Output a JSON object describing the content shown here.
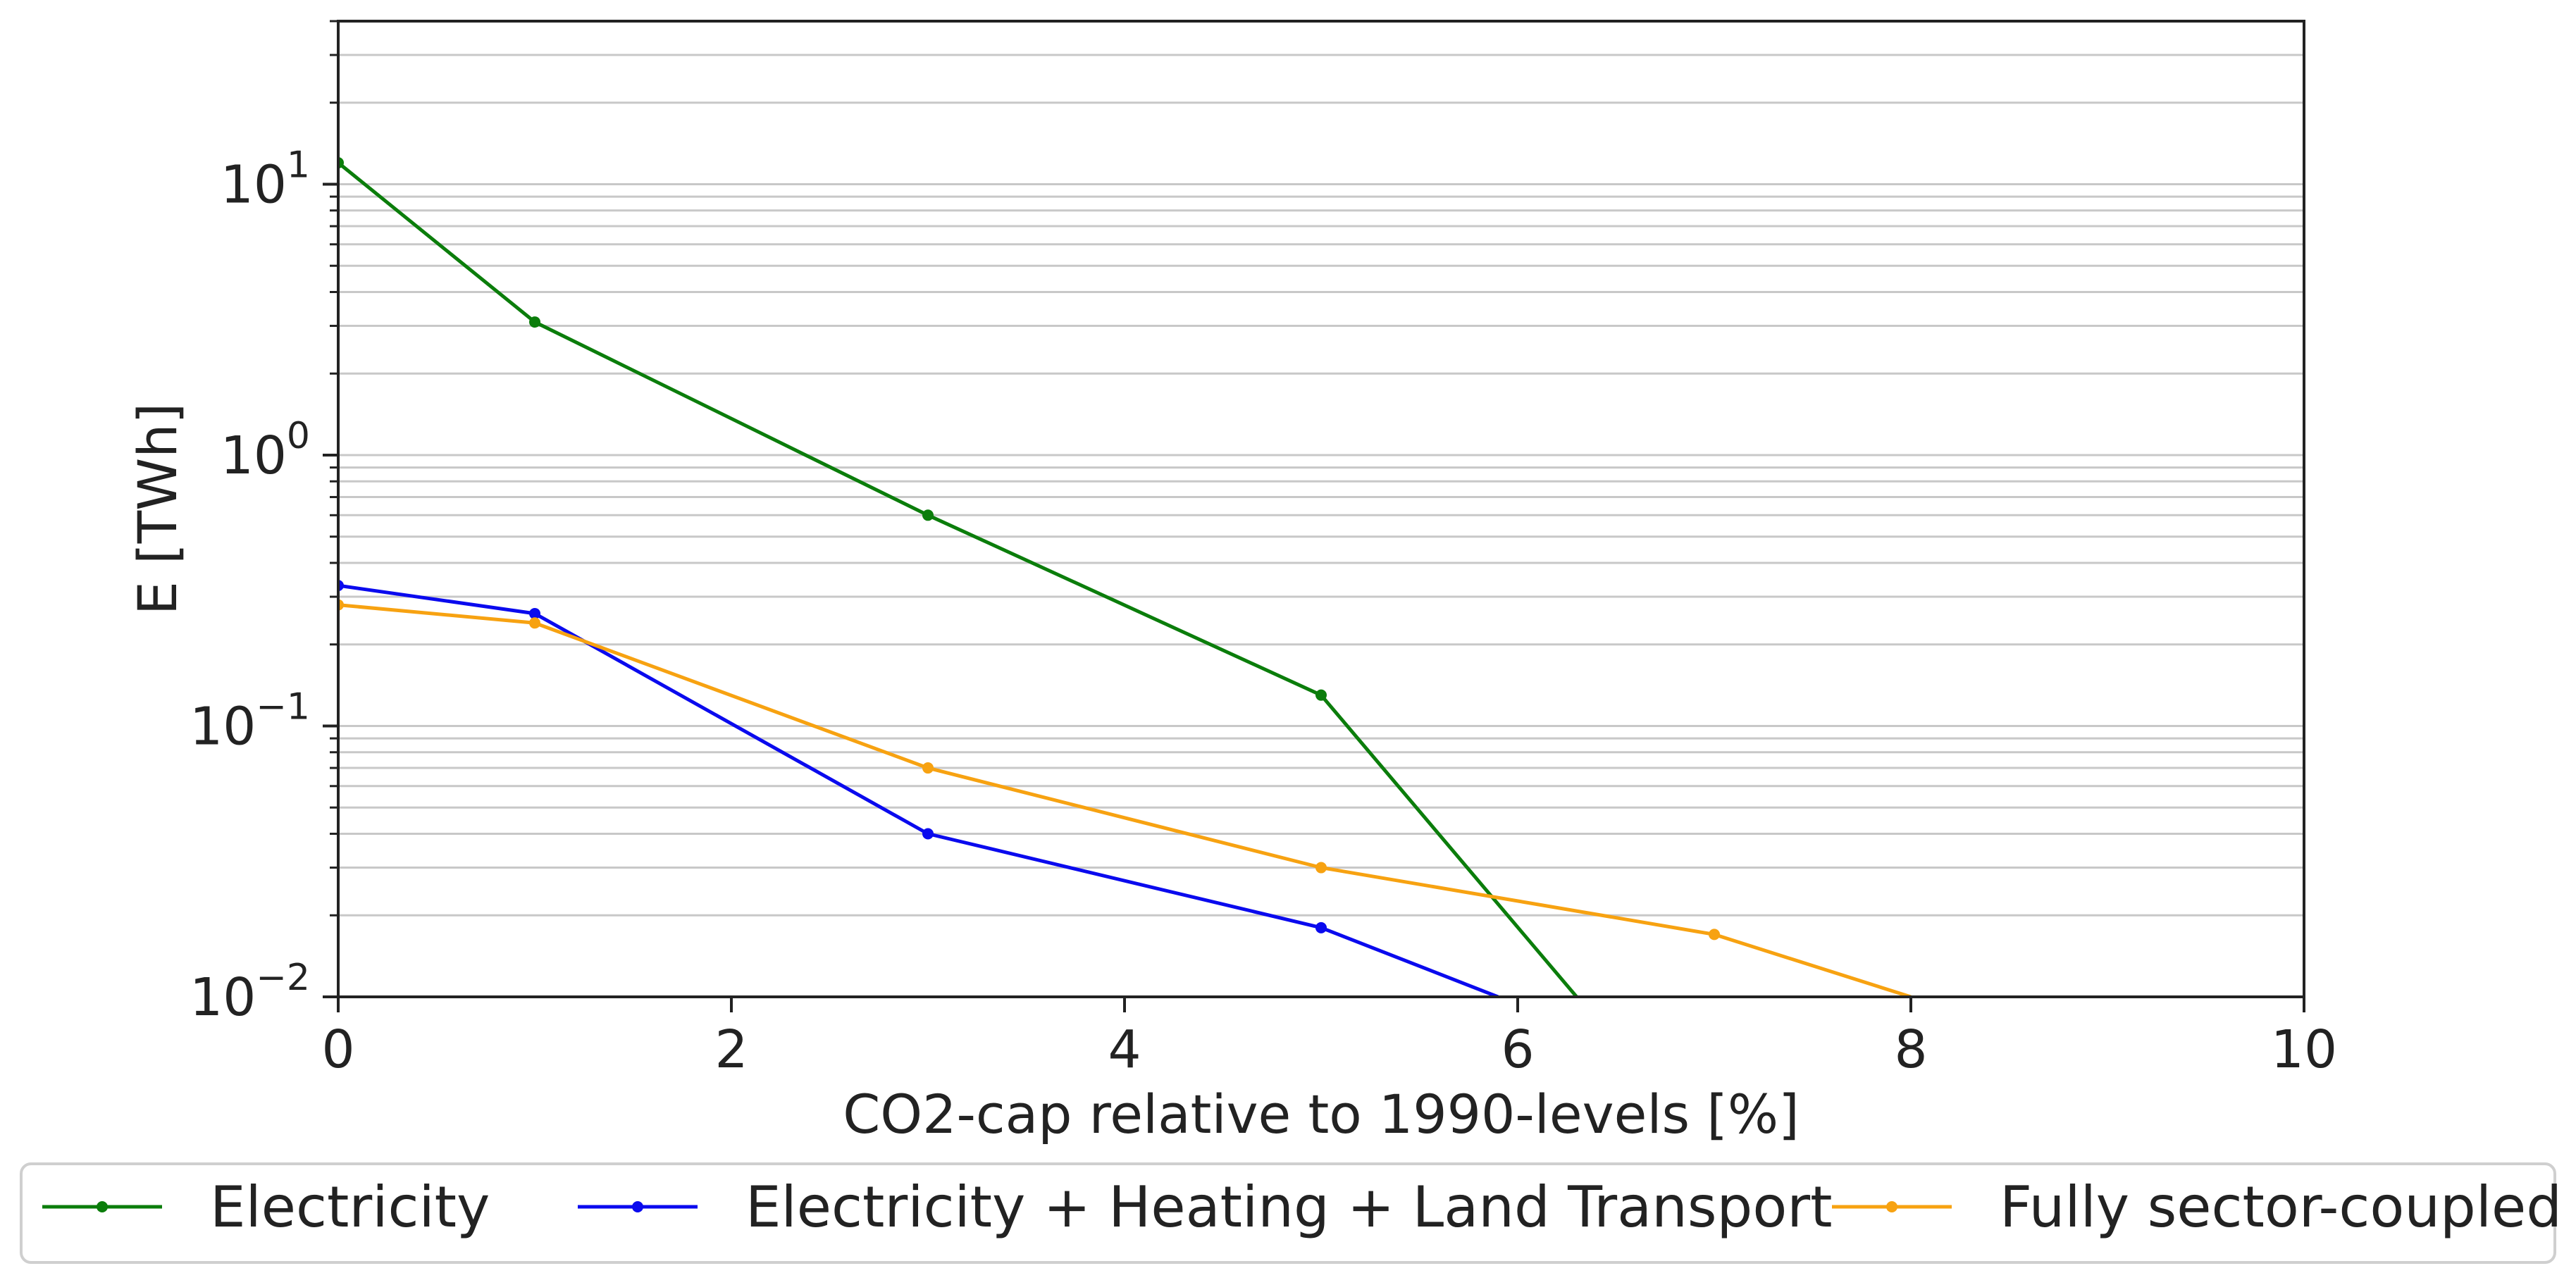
{
  "chart_data": {
    "type": "line",
    "title": "",
    "xlabel": "CO2-cap relative to 1990-levels [%]",
    "ylabel": "E [TWh]",
    "xlim": [
      0,
      10
    ],
    "ylim": [
      0.01,
      40
    ],
    "yscale": "log",
    "x_ticks": [
      {
        "value": 0,
        "label": "0"
      },
      {
        "value": 2,
        "label": "2"
      },
      {
        "value": 4,
        "label": "4"
      },
      {
        "value": 6,
        "label": "6"
      },
      {
        "value": 8,
        "label": "8"
      },
      {
        "value": 10,
        "label": "10"
      }
    ],
    "y_ticks": [
      {
        "value": 0.01,
        "base": "10",
        "exp": "−2"
      },
      {
        "value": 0.1,
        "base": "10",
        "exp": "−1"
      },
      {
        "value": 1,
        "base": "10",
        "exp": "0"
      },
      {
        "value": 10,
        "base": "10",
        "exp": "1"
      }
    ],
    "grid": "horizontal major and minor",
    "legend_position": "bottom-outside",
    "series": [
      {
        "name": "Electricity",
        "color": "#0b7d0b",
        "x": [
          0,
          1,
          3,
          5,
          6.3
        ],
        "values": [
          12,
          3.1,
          0.6,
          0.13,
          0.01
        ],
        "markers": [
          true,
          true,
          true,
          true,
          false
        ]
      },
      {
        "name": "Electricity + Heating + Land Transport",
        "color": "#0a0aee",
        "x": [
          0,
          1,
          3,
          5,
          5.9
        ],
        "values": [
          0.33,
          0.26,
          0.04,
          0.018,
          0.01
        ],
        "markers": [
          true,
          true,
          true,
          true,
          false
        ]
      },
      {
        "name": "Fully sector-coupled",
        "color": "#f7a211",
        "x": [
          0,
          1,
          3,
          5,
          7,
          8
        ],
        "values": [
          0.28,
          0.24,
          0.07,
          0.03,
          0.017,
          0.01
        ],
        "markers": [
          true,
          true,
          true,
          true,
          true,
          false
        ]
      }
    ]
  }
}
